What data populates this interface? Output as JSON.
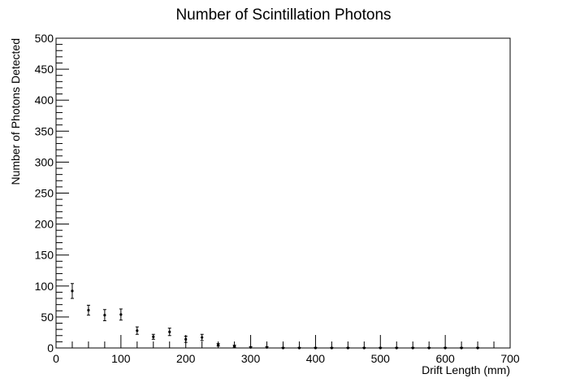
{
  "chart_data": {
    "type": "scatter",
    "title": "Number of Scintillation Photons",
    "xlabel": "Drift Length (mm)",
    "ylabel": "Number of Photons Detected",
    "xlim": [
      0,
      700
    ],
    "ylim": [
      0,
      500
    ],
    "x_ticks": [
      0,
      100,
      200,
      300,
      400,
      500,
      600,
      700
    ],
    "y_ticks": [
      0,
      50,
      100,
      150,
      200,
      250,
      300,
      350,
      400,
      450,
      500
    ],
    "grid": false,
    "legend": "none",
    "error_bars": true,
    "points": [
      {
        "x": 25,
        "y": 92,
        "err": 12
      },
      {
        "x": 50,
        "y": 61,
        "err": 8
      },
      {
        "x": 75,
        "y": 53,
        "err": 9
      },
      {
        "x": 100,
        "y": 54,
        "err": 9
      },
      {
        "x": 125,
        "y": 28,
        "err": 6
      },
      {
        "x": 150,
        "y": 18,
        "err": 4
      },
      {
        "x": 175,
        "y": 26,
        "err": 6
      },
      {
        "x": 200,
        "y": 14,
        "err": 5
      },
      {
        "x": 225,
        "y": 17,
        "err": 5
      },
      {
        "x": 250,
        "y": 5,
        "err": 2
      },
      {
        "x": 275,
        "y": 3,
        "err": 1.5
      },
      {
        "x": 300,
        "y": 1,
        "err": 1
      },
      {
        "x": 325,
        "y": 1,
        "err": 1
      },
      {
        "x": 350,
        "y": 0,
        "err": 0.8
      },
      {
        "x": 375,
        "y": 0,
        "err": 0.8
      },
      {
        "x": 400,
        "y": 0,
        "err": 0.8
      },
      {
        "x": 425,
        "y": 0,
        "err": 0.8
      },
      {
        "x": 450,
        "y": 0,
        "err": 0.8
      },
      {
        "x": 475,
        "y": 0,
        "err": 0.8
      },
      {
        "x": 500,
        "y": 0,
        "err": 0.8
      },
      {
        "x": 525,
        "y": 0,
        "err": 0.8
      },
      {
        "x": 550,
        "y": 0,
        "err": 0.8
      },
      {
        "x": 575,
        "y": 0,
        "err": 0.8
      },
      {
        "x": 600,
        "y": 0,
        "err": 0.8
      },
      {
        "x": 625,
        "y": 0,
        "err": 0.8
      },
      {
        "x": 650,
        "y": 0,
        "err": 0.8
      }
    ],
    "colors": {
      "marker": "#000000",
      "axis": "#000000",
      "background": "#ffffff"
    }
  }
}
